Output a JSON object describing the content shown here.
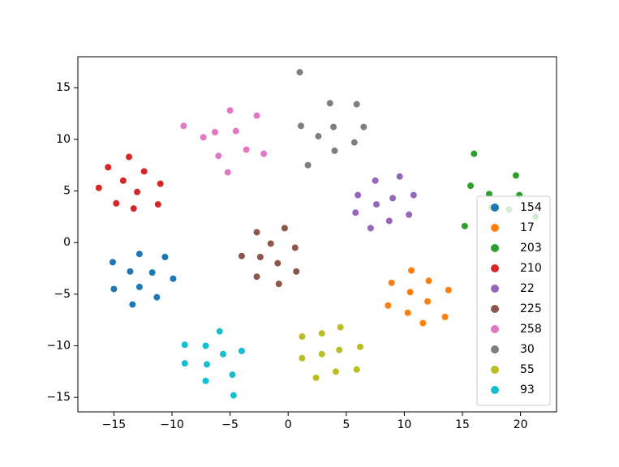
{
  "chart_data": {
    "type": "scatter",
    "xlim": [
      -18.1,
      23.1
    ],
    "ylim": [
      -16.4,
      18.0
    ],
    "xticks": [
      {
        "value": -15,
        "label": "−15"
      },
      {
        "value": -10,
        "label": "−10"
      },
      {
        "value": -5,
        "label": "−5"
      },
      0,
      5,
      10,
      15,
      20
    ],
    "yticks": [
      {
        "value": -15,
        "label": "−15"
      },
      {
        "value": -10,
        "label": "−10"
      },
      {
        "value": -5,
        "label": "−5"
      },
      0,
      5,
      10,
      15
    ],
    "legend": "lower right",
    "series": [
      {
        "name": "154",
        "color": "#1f77b4",
        "x": [
          -15.1,
          -12.8,
          -10.6,
          -13.6,
          -11.7,
          -15.0,
          -12.8,
          -9.9,
          -11.3,
          -13.4
        ],
        "values": [
          -1.9,
          -1.1,
          -1.4,
          -2.8,
          -2.9,
          -4.5,
          -4.3,
          -3.5,
          -5.3,
          -6.0
        ]
      },
      {
        "name": "17",
        "color": "#ff7f0e",
        "x": [
          10.6,
          8.9,
          12.1,
          10.5,
          13.8,
          12.0,
          8.6,
          10.3,
          13.5,
          11.6
        ],
        "values": [
          -2.7,
          -3.9,
          -3.7,
          -4.8,
          -4.6,
          -5.7,
          -6.1,
          -6.8,
          -7.2,
          -7.8
        ]
      },
      {
        "name": "203",
        "color": "#2ca02c",
        "x": [
          16.0,
          19.6,
          15.7,
          17.3,
          19.9,
          15.2,
          17.5,
          19.0,
          21.3
        ],
        "values": [
          8.6,
          6.5,
          5.5,
          4.7,
          4.6,
          1.6,
          3.4,
          3.2,
          2.5
        ]
      },
      {
        "name": "210",
        "color": "#d62728",
        "x": [
          -15.5,
          -13.7,
          -12.4,
          -14.2,
          -11.0,
          -16.3,
          -13.0,
          -14.8,
          -13.3,
          -11.2
        ],
        "values": [
          7.3,
          8.3,
          6.9,
          6.0,
          5.7,
          5.3,
          4.9,
          3.8,
          3.3,
          3.7
        ]
      },
      {
        "name": "22",
        "color": "#9467bd",
        "x": [
          7.5,
          9.6,
          6.0,
          9.0,
          10.8,
          7.6,
          5.8,
          10.4,
          8.7,
          7.1
        ],
        "values": [
          6.0,
          6.4,
          4.6,
          4.3,
          4.6,
          3.7,
          2.9,
          2.7,
          2.1,
          1.4
        ]
      },
      {
        "name": "225",
        "color": "#8c564b",
        "x": [
          -0.3,
          -2.7,
          -1.5,
          0.6,
          -4.0,
          -2.4,
          -0.9,
          0.7,
          -2.7,
          -0.8
        ],
        "values": [
          1.4,
          1.0,
          -0.1,
          -0.5,
          -1.3,
          -1.4,
          -2.0,
          -2.8,
          -3.3,
          -4.0
        ]
      },
      {
        "name": "258",
        "color": "#e377c2",
        "x": [
          -5.0,
          -2.7,
          -9.0,
          -6.3,
          -4.5,
          -7.3,
          -3.6,
          -6.0,
          -2.1,
          -5.2
        ],
        "values": [
          12.8,
          12.3,
          11.3,
          10.7,
          10.8,
          10.2,
          9.0,
          8.4,
          8.6,
          6.8
        ]
      },
      {
        "name": "30",
        "color": "#7f7f7f",
        "x": [
          1.0,
          3.6,
          5.9,
          1.1,
          3.9,
          6.5,
          2.6,
          5.7,
          4.0,
          1.7
        ],
        "values": [
          16.5,
          13.5,
          13.4,
          11.3,
          11.2,
          11.2,
          10.3,
          9.7,
          8.9,
          7.5
        ]
      },
      {
        "name": "55",
        "color": "#bcbd22",
        "x": [
          4.5,
          1.2,
          2.9,
          6.2,
          4.4,
          1.2,
          2.9,
          5.9,
          4.1,
          2.4
        ],
        "values": [
          -8.2,
          -9.1,
          -8.8,
          -10.1,
          -10.4,
          -11.2,
          -10.8,
          -12.3,
          -12.5,
          -13.1
        ]
      },
      {
        "name": "93",
        "color": "#17becf",
        "x": [
          -5.9,
          -8.9,
          -7.1,
          -4.0,
          -5.6,
          -8.9,
          -7.0,
          -4.8,
          -7.1,
          -4.7
        ],
        "values": [
          -8.6,
          -9.9,
          -10.0,
          -10.5,
          -10.8,
          -11.7,
          -11.8,
          -12.8,
          -13.4,
          -14.8
        ]
      }
    ]
  }
}
